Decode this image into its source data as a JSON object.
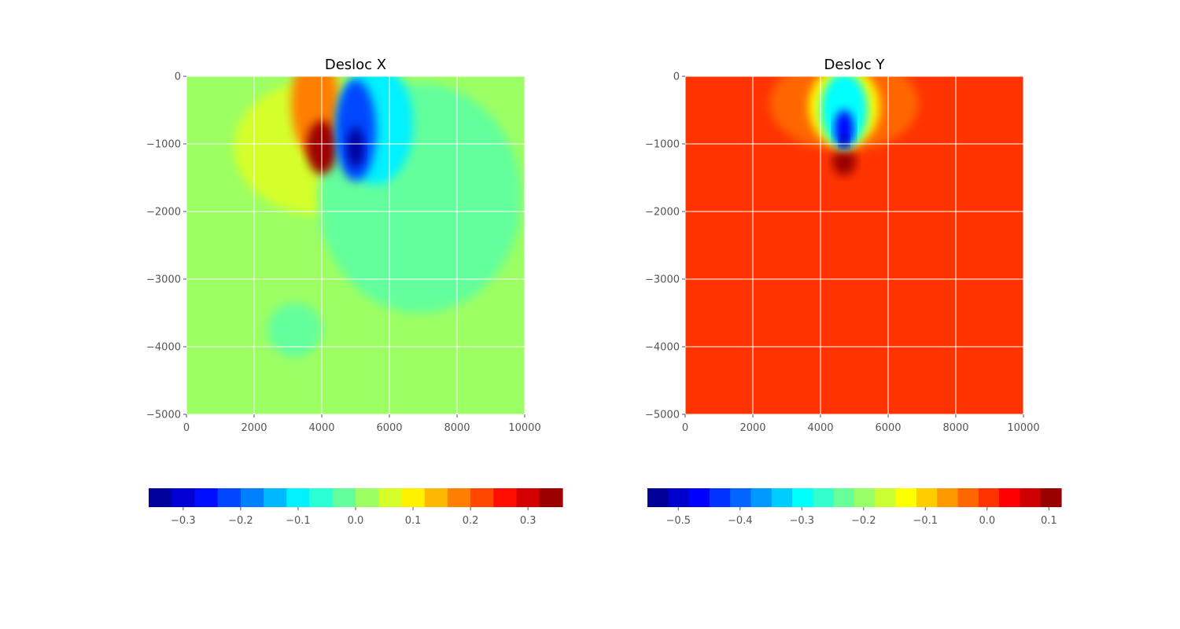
{
  "chart_data": [
    {
      "type": "heatmap",
      "subtype": "filled-contour",
      "title": "Desloc X",
      "xlabel": "",
      "ylabel": "",
      "xlim": [
        0,
        10000
      ],
      "ylim": [
        -5000,
        0
      ],
      "xticks": [
        0,
        2000,
        4000,
        6000,
        8000,
        10000
      ],
      "xtick_labels": [
        "0",
        "2000",
        "4000",
        "6000",
        "8000",
        "10000"
      ],
      "yticks": [
        0,
        -1000,
        -2000,
        -3000,
        -4000,
        -5000
      ],
      "ytick_labels": [
        "0",
        "−1000",
        "−2000",
        "−3000",
        "−4000",
        "−5000"
      ],
      "grid": true,
      "background_value": 0.02,
      "features": [
        {
          "kind": "blob",
          "cx": 4000,
          "cy": -1050,
          "rx": 2600,
          "ry": 1000,
          "value": 0.07
        },
        {
          "kind": "blob",
          "cx": 3200,
          "cy": -3750,
          "rx": 800,
          "ry": 400,
          "value": -0.03
        },
        {
          "kind": "blob",
          "cx": 6900,
          "cy": -1800,
          "rx": 3000,
          "ry": 1700,
          "value": -0.03
        },
        {
          "kind": "blob",
          "cx": 3800,
          "cy": -400,
          "rx": 700,
          "ry": 800,
          "value": 0.17
        },
        {
          "kind": "blob",
          "cx": 4000,
          "cy": -1050,
          "rx": 450,
          "ry": 400,
          "value": 0.34
        },
        {
          "kind": "blob",
          "cx": 5600,
          "cy": -700,
          "rx": 1100,
          "ry": 900,
          "value": -0.1
        },
        {
          "kind": "blob",
          "cx": 5000,
          "cy": -800,
          "rx": 600,
          "ry": 750,
          "value": -0.2
        },
        {
          "kind": "blob",
          "cx": 5000,
          "cy": -1050,
          "rx": 250,
          "ry": 300,
          "value": -0.34
        }
      ],
      "colorbar": {
        "orientation": "horizontal",
        "min": -0.36,
        "max": 0.36,
        "levels": [
          -0.36,
          -0.32,
          -0.28,
          -0.24,
          -0.2,
          -0.16,
          -0.12,
          -0.08,
          -0.04,
          0.0,
          0.04,
          0.08,
          0.12,
          0.16,
          0.2,
          0.24,
          0.28,
          0.32,
          0.36
        ],
        "ticks": [
          -0.3,
          -0.2,
          -0.1,
          0.0,
          0.1,
          0.2,
          0.3
        ],
        "tick_labels": [
          "−0.3",
          "−0.2",
          "−0.1",
          "0.0",
          "0.1",
          "0.2",
          "0.3"
        ]
      }
    },
    {
      "type": "heatmap",
      "subtype": "filled-contour",
      "title": "Desloc Y",
      "xlabel": "",
      "ylabel": "",
      "xlim": [
        0,
        10000
      ],
      "ylim": [
        -5000,
        0
      ],
      "xticks": [
        0,
        2000,
        4000,
        6000,
        8000,
        10000
      ],
      "xtick_labels": [
        "0",
        "2000",
        "4000",
        "6000",
        "8000",
        "10000"
      ],
      "yticks": [
        0,
        -1000,
        -2000,
        -3000,
        -4000,
        -5000
      ],
      "ytick_labels": [
        "0",
        "−1000",
        "−2000",
        "−3000",
        "−4000",
        "−5000"
      ],
      "grid": true,
      "background_value": 0.0,
      "features": [
        {
          "kind": "blob",
          "cx": 4700,
          "cy": -1250,
          "rx": 350,
          "ry": 220,
          "value": 0.1
        },
        {
          "kind": "blob",
          "cx": 4700,
          "cy": -400,
          "rx": 2200,
          "ry": 700,
          "value": -0.04
        },
        {
          "kind": "blob",
          "cx": 4700,
          "cy": -450,
          "rx": 1050,
          "ry": 600,
          "value": -0.13
        },
        {
          "kind": "blob",
          "cx": 4700,
          "cy": -500,
          "rx": 700,
          "ry": 560,
          "value": -0.3
        },
        {
          "kind": "blob",
          "cx": 4700,
          "cy": -780,
          "rx": 280,
          "ry": 280,
          "value": -0.45
        },
        {
          "kind": "blob",
          "cx": 4700,
          "cy": -960,
          "rx": 130,
          "ry": 90,
          "value": -0.54
        }
      ],
      "colorbar": {
        "orientation": "horizontal",
        "min": -0.55,
        "max": 0.12,
        "levels": [
          -0.55,
          -0.5165,
          -0.483,
          -0.4495,
          -0.416,
          -0.3825,
          -0.349,
          -0.3155,
          -0.282,
          -0.2485,
          -0.215,
          -0.1815,
          -0.148,
          -0.1145,
          -0.081,
          -0.0475,
          -0.014,
          0.0195,
          0.053,
          0.0865,
          0.12
        ],
        "ticks": [
          -0.5,
          -0.4,
          -0.3,
          -0.2,
          -0.1,
          0.0,
          0.1
        ],
        "tick_labels": [
          "−0.5",
          "−0.4",
          "−0.3",
          "−0.2",
          "−0.1",
          "0.0",
          "0.1"
        ]
      }
    }
  ]
}
